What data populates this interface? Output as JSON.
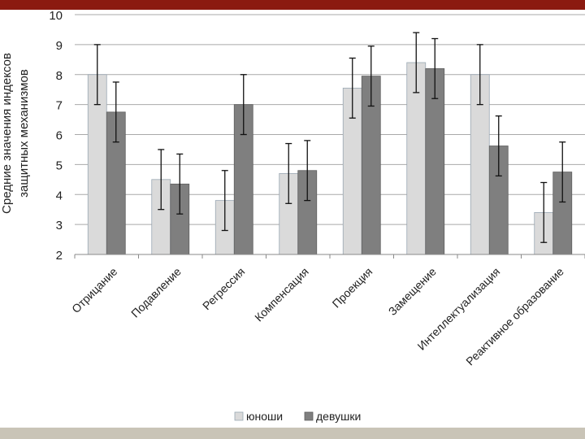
{
  "chart_data": {
    "type": "bar",
    "ylabel": [
      "Средние значения индексов",
      "защитных механизмов"
    ],
    "ylim": [
      2,
      10
    ],
    "yticks": [
      2,
      3,
      4,
      5,
      6,
      7,
      8,
      9,
      10
    ],
    "grid": true,
    "legend_position": "bottom",
    "categories": [
      "Отрицание",
      "Подавление",
      "Регрессия",
      "Компенсация",
      "Проекция",
      "Замещение",
      "Интеллектуализация",
      "Реактивное образование"
    ],
    "series": [
      {
        "name": "юноши",
        "color": "#dadada",
        "values": [
          8.0,
          4.5,
          3.8,
          4.7,
          7.55,
          8.4,
          8.0,
          3.4
        ],
        "error": [
          1.0,
          1.0,
          1.0,
          1.0,
          1.0,
          1.0,
          1.0,
          1.0
        ]
      },
      {
        "name": "девушки",
        "color": "#7f7f7f",
        "values": [
          6.75,
          4.35,
          7.0,
          4.8,
          7.95,
          8.2,
          5.62,
          4.75
        ],
        "error": [
          1.0,
          1.0,
          1.0,
          1.0,
          1.0,
          1.0,
          1.0,
          1.0
        ]
      }
    ]
  }
}
